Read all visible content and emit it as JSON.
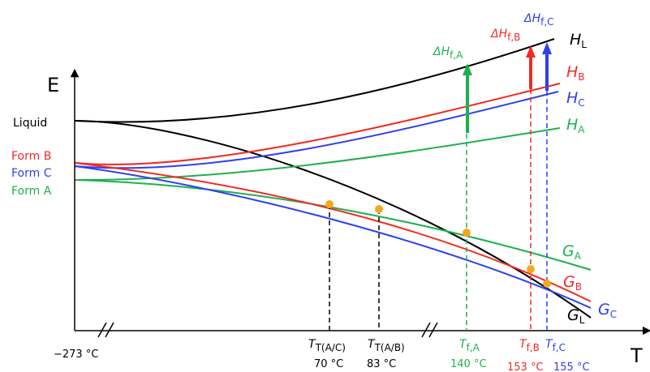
{
  "axes": {
    "y_label": "E",
    "x_label": "T",
    "origin_label": "−273 °C"
  },
  "state_labels": {
    "liquid": "Liquid",
    "form_b": "Form B",
    "form_c": "Form C",
    "form_a": "Form A"
  },
  "colors": {
    "A": "#1db04e",
    "B": "#ef2b23",
    "C": "#2e3ff0",
    "L": "#000000",
    "marker": "#f5a81e"
  },
  "curve_labels": {
    "HL": {
      "main": "H",
      "sub": "L"
    },
    "HB": {
      "main": "H",
      "sub": "B"
    },
    "HC": {
      "main": "H",
      "sub": "C"
    },
    "HA": {
      "main": "H",
      "sub": "A"
    },
    "GA": {
      "main": "G",
      "sub": "A"
    },
    "GB": {
      "main": "G",
      "sub": "B"
    },
    "GL": {
      "main": "G",
      "sub": "L"
    },
    "GC": {
      "main": "G",
      "sub": "C"
    }
  },
  "enthalpy_of_fusion": [
    {
      "id": "A",
      "main": "ΔH",
      "sub": "f,A"
    },
    {
      "id": "B",
      "main": "ΔH",
      "sub": "f,B"
    },
    {
      "id": "C",
      "main": "ΔH",
      "sub": "f,C"
    }
  ],
  "transitions": [
    {
      "id": "AC",
      "main": "T",
      "sub": "T(A/C)",
      "value": "70 °C"
    },
    {
      "id": "AB",
      "main": "T",
      "sub": "T(A/B)",
      "value": "83 °C"
    },
    {
      "id": "fA",
      "main": "T",
      "sub": "f,A",
      "value": "140 °C"
    },
    {
      "id": "fB",
      "main": "T",
      "sub": "f,B",
      "value": "153 °C"
    },
    {
      "id": "fC",
      "main": "T",
      "sub": "f,C",
      "value": "155 °C"
    }
  ]
}
